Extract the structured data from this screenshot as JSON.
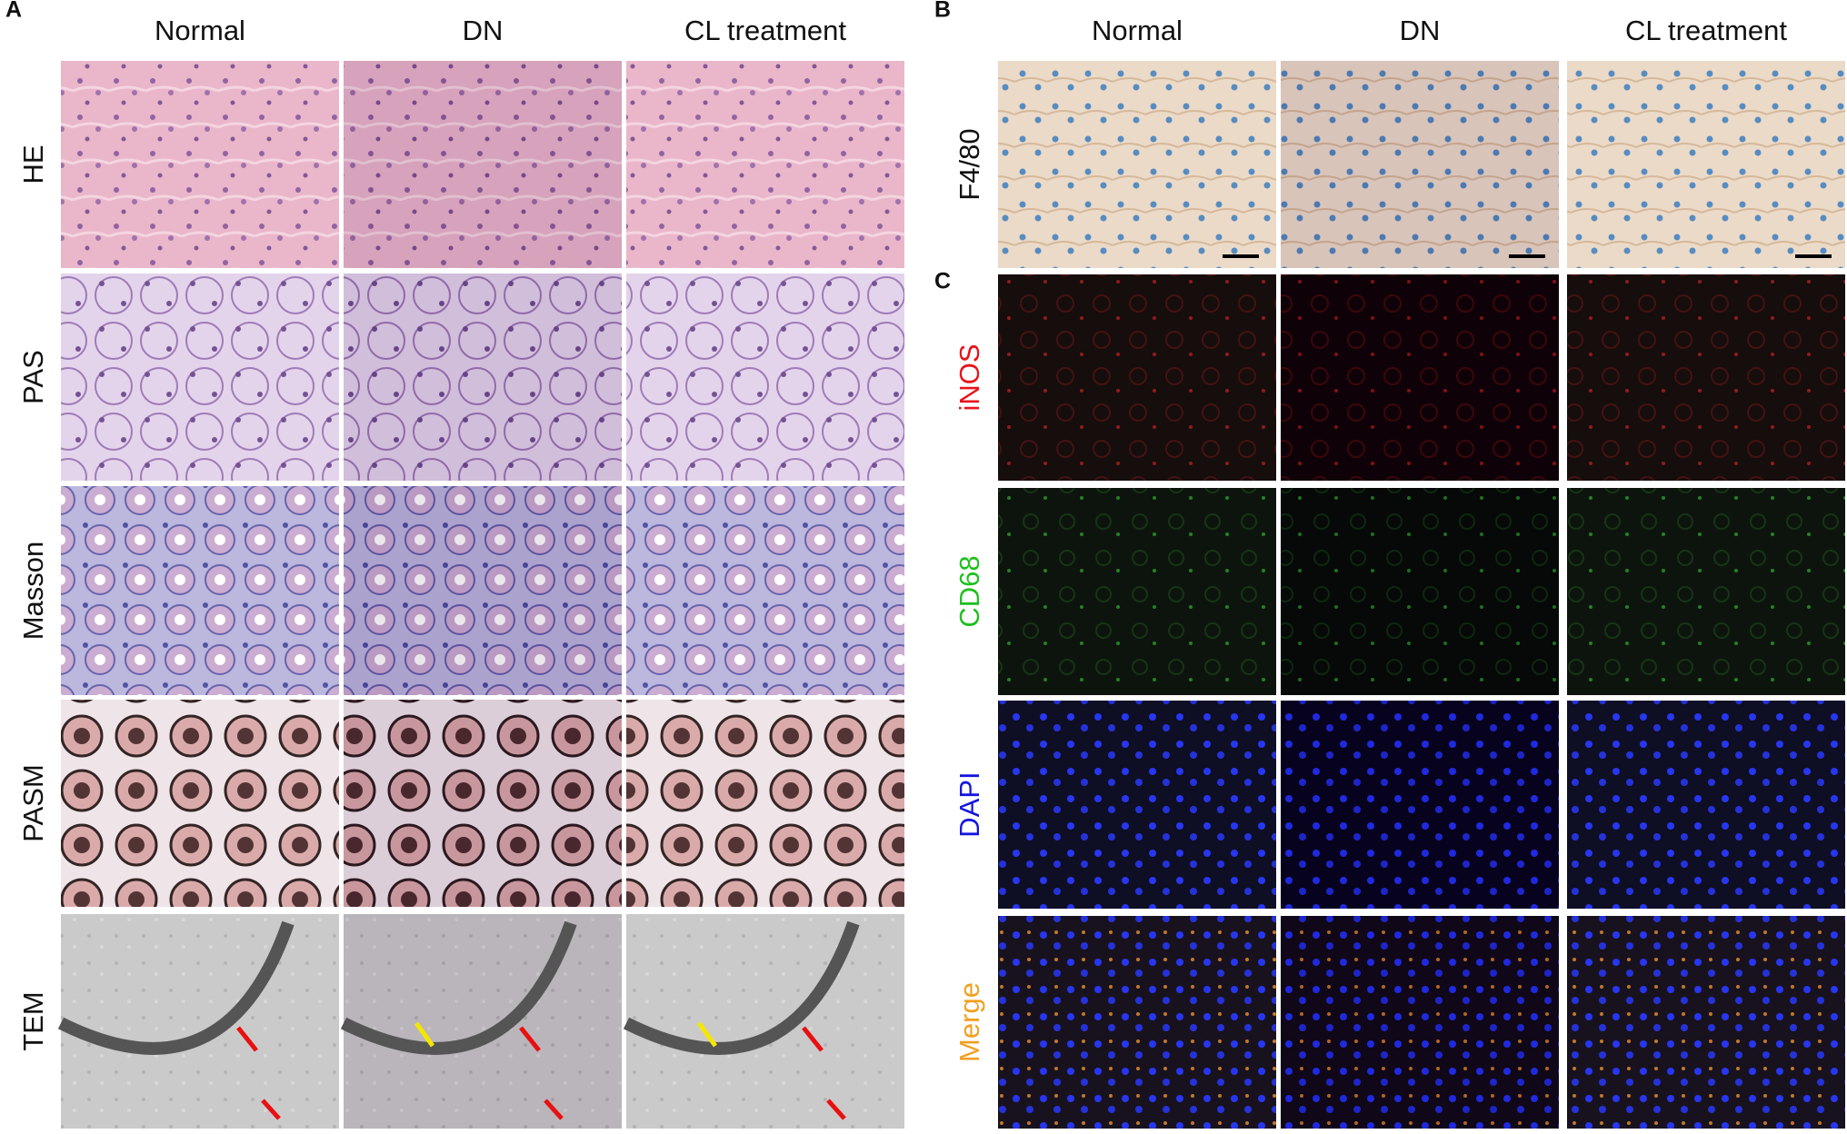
{
  "panels": [
    {
      "label": "A",
      "columns": [
        "Normal",
        "DN",
        "CL treatment"
      ],
      "rows": [
        "HE",
        "PAS",
        "Masson",
        "PASM",
        "TEM"
      ]
    },
    {
      "label": "B",
      "columns": [
        "Normal",
        "DN",
        "CL treatment"
      ],
      "rows": [
        "F4/80"
      ]
    },
    {
      "label": "C",
      "rows": [
        "iNOS",
        "CD68",
        "DAPI",
        "Merge"
      ]
    }
  ]
}
